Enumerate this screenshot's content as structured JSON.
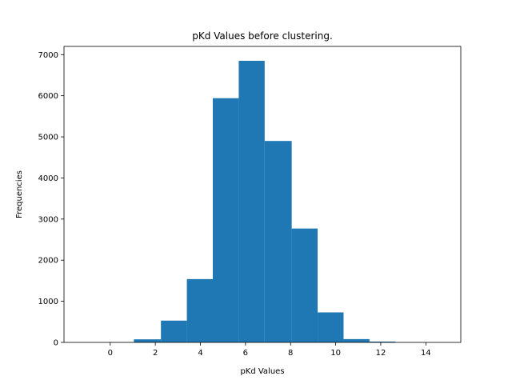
{
  "chart_data": {
    "type": "bar",
    "title": "pKd Values before clustering.",
    "xlabel": "pKd Values",
    "ylabel": "Frequencies",
    "xlim": [
      -2.05,
      15.55
    ],
    "ylim": [
      0,
      7200
    ],
    "xticks": [
      0,
      2,
      4,
      6,
      8,
      10,
      12,
      14
    ],
    "yticks": [
      0,
      1000,
      2000,
      3000,
      4000,
      5000,
      6000,
      7000
    ],
    "grid": false,
    "bar_color": "#1f77b4",
    "bins": [
      {
        "x0": -1.25,
        "x1": -0.1,
        "value": 0
      },
      {
        "x0": -0.1,
        "x1": 1.05,
        "value": 5
      },
      {
        "x0": 1.05,
        "x1": 2.25,
        "value": 75
      },
      {
        "x0": 2.25,
        "x1": 3.4,
        "value": 530
      },
      {
        "x0": 3.4,
        "x1": 4.55,
        "value": 1540
      },
      {
        "x0": 4.55,
        "x1": 5.7,
        "value": 5940
      },
      {
        "x0": 5.7,
        "x1": 6.85,
        "value": 6850
      },
      {
        "x0": 6.85,
        "x1": 8.05,
        "value": 4900
      },
      {
        "x0": 8.05,
        "x1": 9.2,
        "value": 2770
      },
      {
        "x0": 9.2,
        "x1": 10.35,
        "value": 730
      },
      {
        "x0": 10.35,
        "x1": 11.5,
        "value": 80
      },
      {
        "x0": 11.5,
        "x1": 12.65,
        "value": 20
      },
      {
        "x0": 12.65,
        "x1": 13.8,
        "value": 3
      },
      {
        "x0": 13.8,
        "x1": 15.0,
        "value": 1
      }
    ]
  }
}
